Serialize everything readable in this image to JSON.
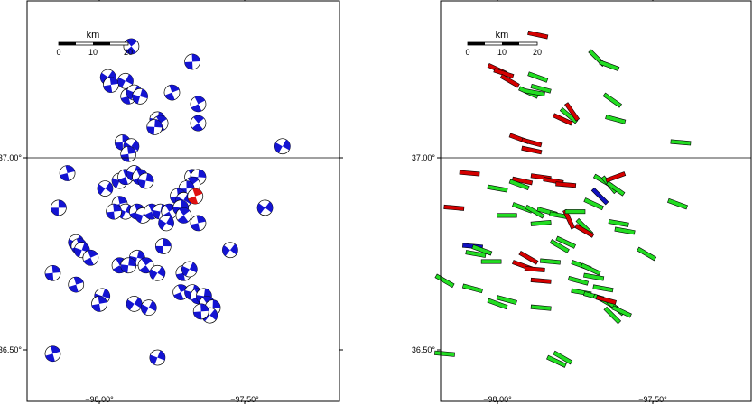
{
  "left_panel": {
    "y_ticks": [
      "37.00°",
      "36.50°"
    ],
    "x_ticks": [
      "−98.00°",
      "−97.50°"
    ],
    "scalebar": {
      "unit": "km",
      "ticks": [
        "0",
        "10",
        "20"
      ]
    }
  },
  "right_panel": {
    "y_ticks": [
      "37.00°",
      "36.50°"
    ],
    "x_ticks": [
      "−98.00°",
      "−97.50°"
    ],
    "scalebar": {
      "unit": "km",
      "ticks": [
        "0",
        "10",
        "20"
      ]
    }
  },
  "colors": {
    "beachball": "#1414d2",
    "beachball_highlight": "#e01010",
    "bar_green": "#22dd22",
    "bar_red": "#d40000",
    "bar_blue": "#1010c0"
  },
  "left_events": [
    [
      -97.89,
      37.29
    ],
    [
      -97.68,
      37.25
    ],
    [
      -97.97,
      37.21
    ],
    [
      -97.96,
      37.19
    ],
    [
      -97.91,
      37.2
    ],
    [
      -97.9,
      37.16
    ],
    [
      -97.88,
      37.17
    ],
    [
      -97.75,
      37.17
    ],
    [
      -97.86,
      37.16
    ],
    [
      -97.66,
      37.14
    ],
    [
      -97.8,
      37.1
    ],
    [
      -97.79,
      37.09
    ],
    [
      -97.81,
      37.08
    ],
    [
      -97.66,
      37.09
    ],
    [
      -97.92,
      37.04
    ],
    [
      -97.89,
      37.03
    ],
    [
      -97.9,
      37.01
    ],
    [
      -97.37,
      37.03
    ],
    [
      -98.11,
      36.96
    ],
    [
      -97.93,
      36.94
    ],
    [
      -97.91,
      36.95
    ],
    [
      -97.88,
      36.96
    ],
    [
      -97.86,
      36.95
    ],
    [
      -97.84,
      36.94
    ],
    [
      -97.68,
      36.95
    ],
    [
      -97.66,
      36.95
    ],
    [
      -97.68,
      36.93
    ],
    [
      -97.7,
      36.92
    ],
    [
      -97.98,
      36.92
    ],
    [
      -97.73,
      36.9
    ],
    [
      -97.71,
      36.89
    ],
    [
      -97.93,
      36.88
    ],
    [
      -97.91,
      36.86
    ],
    [
      -97.87,
      36.86
    ],
    [
      -97.85,
      36.85
    ],
    [
      -97.82,
      36.86
    ],
    [
      -97.79,
      36.86
    ],
    [
      -97.76,
      36.86
    ],
    [
      -97.72,
      36.87
    ],
    [
      -97.71,
      36.85
    ],
    [
      -98.14,
      36.87
    ],
    [
      -97.43,
      36.87
    ],
    [
      -97.95,
      36.86
    ],
    [
      -97.77,
      36.83
    ],
    [
      -97.66,
      36.83
    ],
    [
      -98.08,
      36.78
    ],
    [
      -98.07,
      36.77
    ],
    [
      -98.06,
      36.76
    ],
    [
      -98.03,
      36.74
    ],
    [
      -97.87,
      36.74
    ],
    [
      -97.93,
      36.72
    ],
    [
      -97.9,
      36.72
    ],
    [
      -97.84,
      36.72
    ],
    [
      -97.78,
      36.77
    ],
    [
      -97.55,
      36.76
    ],
    [
      -98.16,
      36.7
    ],
    [
      -97.8,
      36.7
    ],
    [
      -97.71,
      36.7
    ],
    [
      -97.69,
      36.71
    ],
    [
      -98.08,
      36.67
    ],
    [
      -97.99,
      36.64
    ],
    [
      -97.72,
      36.65
    ],
    [
      -97.68,
      36.65
    ],
    [
      -97.66,
      36.64
    ],
    [
      -97.64,
      36.64
    ],
    [
      -97.63,
      36.62
    ],
    [
      -97.61,
      36.61
    ],
    [
      -97.62,
      36.59
    ],
    [
      -97.65,
      36.6
    ],
    [
      -97.88,
      36.62
    ],
    [
      -98.0,
      36.62
    ],
    [
      -97.83,
      36.61
    ],
    [
      -98.16,
      36.49
    ],
    [
      -97.8,
      36.48
    ]
  ],
  "left_highlight_event": [
    -97.67,
    36.9
  ],
  "right_bars": [
    {
      "c": "red",
      "lon": -97.87,
      "lat": 37.32,
      "az": -78
    },
    {
      "c": "red",
      "lon": -98.0,
      "lat": 37.23,
      "az": -65
    },
    {
      "c": "red",
      "lon": -97.98,
      "lat": 37.22,
      "az": -72
    },
    {
      "c": "red",
      "lon": -97.96,
      "lat": 37.2,
      "az": -60
    },
    {
      "c": "green",
      "lon": -97.87,
      "lat": 37.21,
      "az": -70
    },
    {
      "c": "green",
      "lon": -97.86,
      "lat": 37.18,
      "az": -75
    },
    {
      "c": "green",
      "lon": -97.9,
      "lat": 37.17,
      "az": -65
    },
    {
      "c": "green",
      "lon": -97.88,
      "lat": 37.17,
      "az": -80
    },
    {
      "c": "green",
      "lon": -97.68,
      "lat": 37.26,
      "az": -45
    },
    {
      "c": "green",
      "lon": -97.64,
      "lat": 37.24,
      "az": -70
    },
    {
      "c": "green",
      "lon": -97.63,
      "lat": 37.15,
      "az": -55
    },
    {
      "c": "green",
      "lon": -97.77,
      "lat": 37.11,
      "az": -50
    },
    {
      "c": "red",
      "lon": -97.79,
      "lat": 37.1,
      "az": -65
    },
    {
      "c": "red",
      "lon": -97.76,
      "lat": 37.12,
      "az": -35
    },
    {
      "c": "green",
      "lon": -97.62,
      "lat": 37.1,
      "az": -75
    },
    {
      "c": "red",
      "lon": -97.93,
      "lat": 37.05,
      "az": -70
    },
    {
      "c": "red",
      "lon": -97.89,
      "lat": 37.04,
      "az": -75
    },
    {
      "c": "red",
      "lon": -97.89,
      "lat": 37.02,
      "az": -78
    },
    {
      "c": "green",
      "lon": -97.41,
      "lat": 37.04,
      "az": 95
    },
    {
      "c": "red",
      "lon": -98.09,
      "lat": 36.96,
      "az": 95
    },
    {
      "c": "red",
      "lon": -97.92,
      "lat": 36.94,
      "az": -78
    },
    {
      "c": "red",
      "lon": -97.86,
      "lat": 36.95,
      "az": -82
    },
    {
      "c": "red",
      "lon": -97.82,
      "lat": 36.94,
      "az": -80
    },
    {
      "c": "red",
      "lon": -97.78,
      "lat": 36.93,
      "az": 95
    },
    {
      "c": "green",
      "lon": -97.66,
      "lat": 36.94,
      "az": -60
    },
    {
      "c": "green",
      "lon": -97.64,
      "lat": 36.93,
      "az": -40
    },
    {
      "c": "green",
      "lon": -97.62,
      "lat": 36.92,
      "az": -55
    },
    {
      "c": "red",
      "lon": -97.62,
      "lat": 36.95,
      "az": 70
    },
    {
      "c": "blue",
      "lon": -97.67,
      "lat": 36.9,
      "az": -45
    },
    {
      "c": "green",
      "lon": -97.69,
      "lat": 36.88,
      "az": -65
    },
    {
      "c": "green",
      "lon": -98.0,
      "lat": 36.92,
      "az": -80
    },
    {
      "c": "green",
      "lon": -97.93,
      "lat": 36.93,
      "az": -70
    },
    {
      "c": "red",
      "lon": -98.14,
      "lat": 36.87,
      "az": -85
    },
    {
      "c": "green",
      "lon": -97.92,
      "lat": 36.87,
      "az": -70
    },
    {
      "c": "green",
      "lon": -97.88,
      "lat": 36.86,
      "az": -60
    },
    {
      "c": "green",
      "lon": -97.84,
      "lat": 36.86,
      "az": -75
    },
    {
      "c": "green",
      "lon": -97.8,
      "lat": 36.85,
      "az": -80
    },
    {
      "c": "red",
      "lon": -97.77,
      "lat": 36.84,
      "az": -25
    },
    {
      "c": "green",
      "lon": -97.75,
      "lat": 36.86,
      "az": 90
    },
    {
      "c": "green",
      "lon": -97.72,
      "lat": 36.82,
      "az": -45
    },
    {
      "c": "red",
      "lon": -97.72,
      "lat": 36.81,
      "az": -60
    },
    {
      "c": "green",
      "lon": -97.61,
      "lat": 36.83,
      "az": 100
    },
    {
      "c": "green",
      "lon": -97.59,
      "lat": 36.81,
      "az": 100
    },
    {
      "c": "green",
      "lon": -97.42,
      "lat": 36.88,
      "az": 110
    },
    {
      "c": "green",
      "lon": -97.86,
      "lat": 36.83,
      "az": 85
    },
    {
      "c": "green",
      "lon": -97.97,
      "lat": 36.85,
      "az": 90
    },
    {
      "c": "blue",
      "lon": -98.08,
      "lat": 36.77,
      "az": -85
    },
    {
      "c": "green",
      "lon": -98.05,
      "lat": 36.76,
      "az": -70
    },
    {
      "c": "green",
      "lon": -98.07,
      "lat": 36.75,
      "az": -80
    },
    {
      "c": "green",
      "lon": -98.02,
      "lat": 36.73,
      "az": 90
    },
    {
      "c": "green",
      "lon": -97.8,
      "lat": 36.77,
      "az": -60
    },
    {
      "c": "green",
      "lon": -97.78,
      "lat": 36.78,
      "az": -65
    },
    {
      "c": "green",
      "lon": -97.52,
      "lat": 36.75,
      "az": -60
    },
    {
      "c": "red",
      "lon": -97.92,
      "lat": 36.72,
      "az": -70
    },
    {
      "c": "red",
      "lon": -97.88,
      "lat": 36.71,
      "az": 95
    },
    {
      "c": "red",
      "lon": -97.9,
      "lat": 36.74,
      "az": -60
    },
    {
      "c": "green",
      "lon": -97.83,
      "lat": 36.73,
      "az": 95
    },
    {
      "c": "green",
      "lon": -97.73,
      "lat": 36.72,
      "az": 110
    },
    {
      "c": "green",
      "lon": -97.7,
      "lat": 36.71,
      "az": 115
    },
    {
      "c": "green",
      "lon": -97.69,
      "lat": 36.69,
      "az": 100
    },
    {
      "c": "green",
      "lon": -97.74,
      "lat": 36.68,
      "az": -75
    },
    {
      "c": "red",
      "lon": -97.86,
      "lat": 36.68,
      "az": 95
    },
    {
      "c": "green",
      "lon": -98.17,
      "lat": 36.68,
      "az": -60
    },
    {
      "c": "green",
      "lon": -98.08,
      "lat": 36.66,
      "az": 105
    },
    {
      "c": "green",
      "lon": -97.97,
      "lat": 36.63,
      "az": -75
    },
    {
      "c": "green",
      "lon": -98.0,
      "lat": 36.62,
      "az": -70
    },
    {
      "c": "green",
      "lon": -97.73,
      "lat": 36.65,
      "az": 100
    },
    {
      "c": "green",
      "lon": -97.69,
      "lat": 36.64,
      "az": 105
    },
    {
      "c": "green",
      "lon": -97.66,
      "lat": 36.63,
      "az": 115
    },
    {
      "c": "green",
      "lon": -97.64,
      "lat": 36.62,
      "az": 120
    },
    {
      "c": "green",
      "lon": -97.62,
      "lat": 36.61,
      "az": 130
    },
    {
      "c": "green",
      "lon": -97.63,
      "lat": 36.59,
      "az": 135
    },
    {
      "c": "green",
      "lon": -97.6,
      "lat": 36.6,
      "az": 115
    },
    {
      "c": "green",
      "lon": -97.66,
      "lat": 36.66,
      "az": 100
    },
    {
      "c": "red",
      "lon": -97.65,
      "lat": 36.63,
      "az": 105
    },
    {
      "c": "green",
      "lon": -97.86,
      "lat": 36.61,
      "az": 95
    },
    {
      "c": "green",
      "lon": -98.17,
      "lat": 36.49,
      "az": 95
    },
    {
      "c": "green",
      "lon": -97.79,
      "lat": 36.48,
      "az": -60
    },
    {
      "c": "green",
      "lon": -97.81,
      "lat": 36.47,
      "az": -65
    }
  ]
}
